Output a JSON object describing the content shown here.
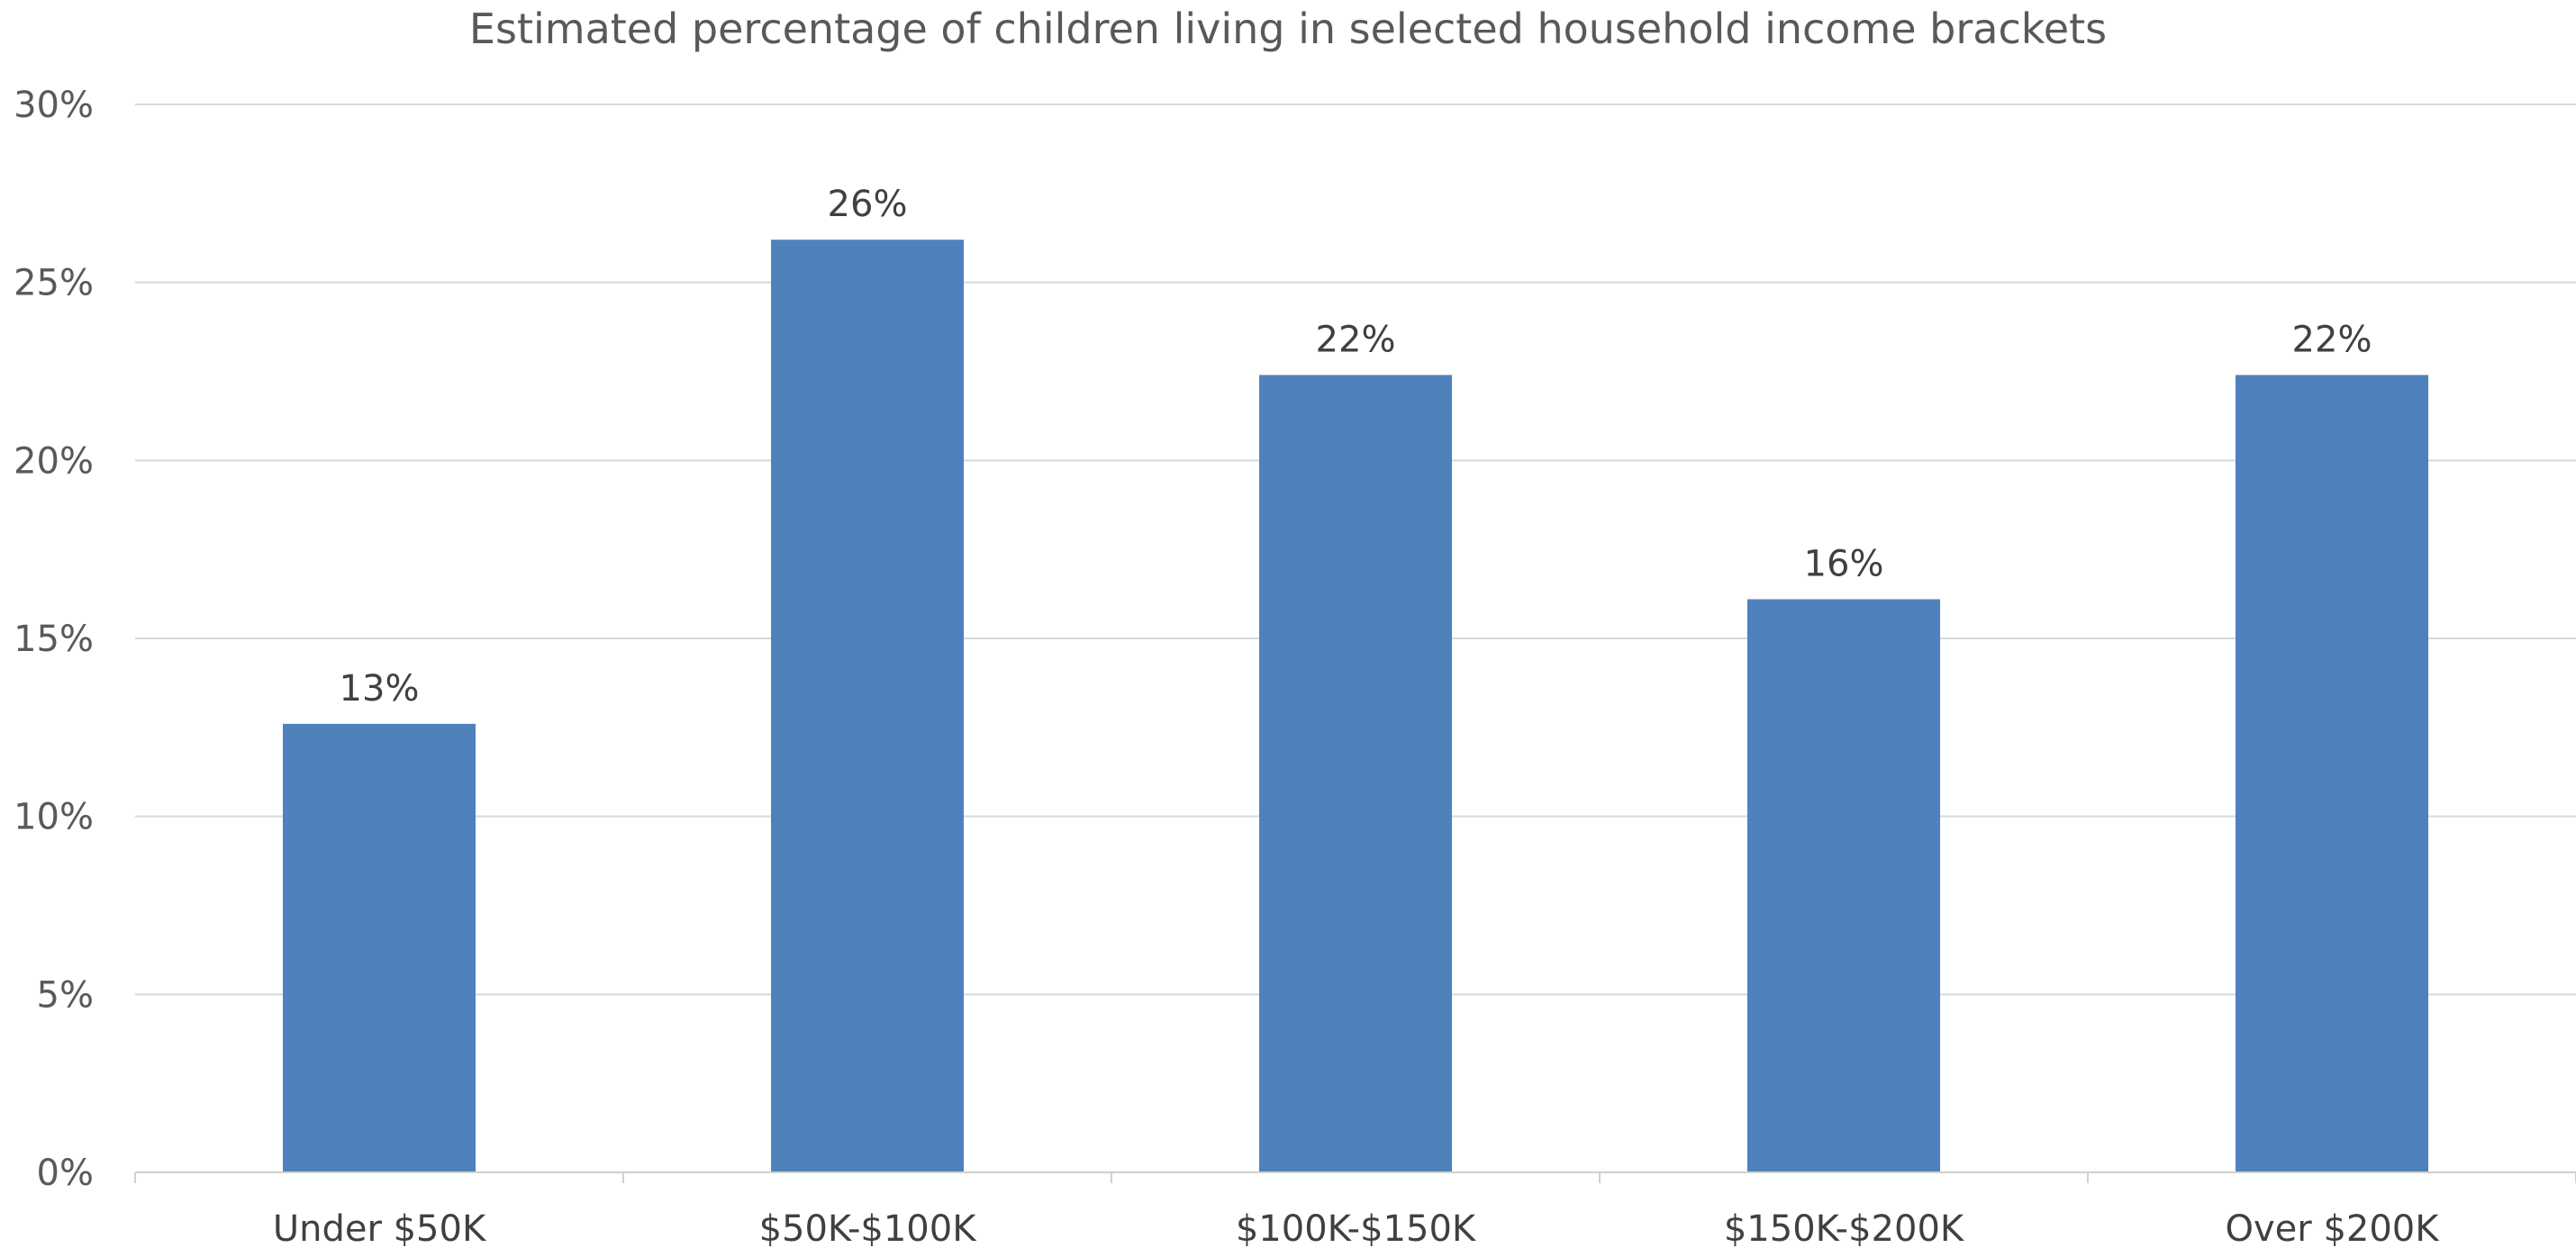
{
  "chart_data": {
    "type": "bar",
    "title": "Estimated percentage of children living in selected household income brackets",
    "xlabel": "",
    "ylabel": "",
    "categories": [
      "Under $50K",
      "$50K-$100K",
      "$100K-$150K",
      "$150K-$200K",
      "Over $200K"
    ],
    "values": [
      12.6,
      26.2,
      22.4,
      16.1,
      22.4
    ],
    "data_labels": [
      "13%",
      "26%",
      "22%",
      "16%",
      "22%"
    ],
    "ylim": [
      0,
      30
    ],
    "yticks": [
      0,
      5,
      10,
      15,
      20,
      25,
      30
    ],
    "ytick_labels": [
      "0%",
      "5%",
      "10%",
      "15%",
      "20%",
      "25%",
      "30%"
    ],
    "grid": true,
    "legend": "none",
    "bar_color": "#4f81bd"
  }
}
